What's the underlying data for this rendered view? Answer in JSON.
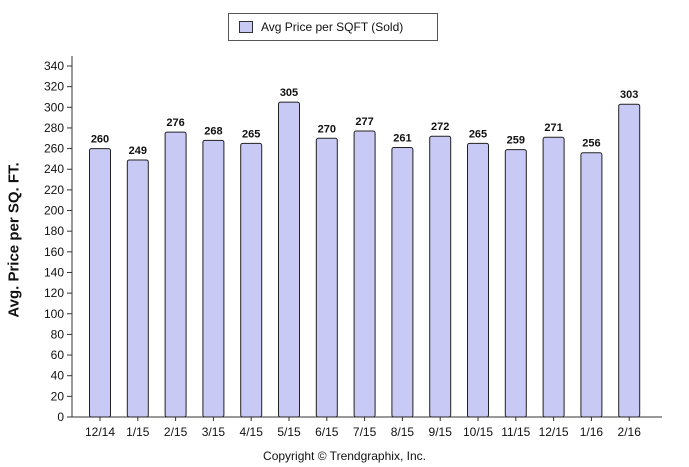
{
  "chart_data": {
    "type": "bar",
    "categories": [
      "12/14",
      "1/15",
      "2/15",
      "3/15",
      "4/15",
      "5/15",
      "6/15",
      "7/15",
      "8/15",
      "9/15",
      "10/15",
      "11/15",
      "12/15",
      "1/16",
      "2/16"
    ],
    "series": [
      {
        "name": "Avg Price per SQFT (Sold)",
        "values": [
          260,
          249,
          276,
          268,
          265,
          305,
          270,
          277,
          261,
          272,
          265,
          259,
          271,
          256,
          303
        ]
      }
    ],
    "ylabel": "Avg. Price per SQ. FT.",
    "xlabel": "",
    "ylim": [
      0,
      340
    ],
    "yticks": [
      0,
      20,
      40,
      60,
      80,
      100,
      120,
      140,
      160,
      180,
      200,
      220,
      240,
      260,
      280,
      300,
      320,
      340
    ],
    "grid": false,
    "legend_position": "top-center",
    "bar_color": "#c9c9f5",
    "value_labels": true
  },
  "legend": {
    "label": "Avg Price per SQFT (Sold)"
  },
  "footer": {
    "copyright": "Copyright © Trendgraphix, Inc."
  }
}
